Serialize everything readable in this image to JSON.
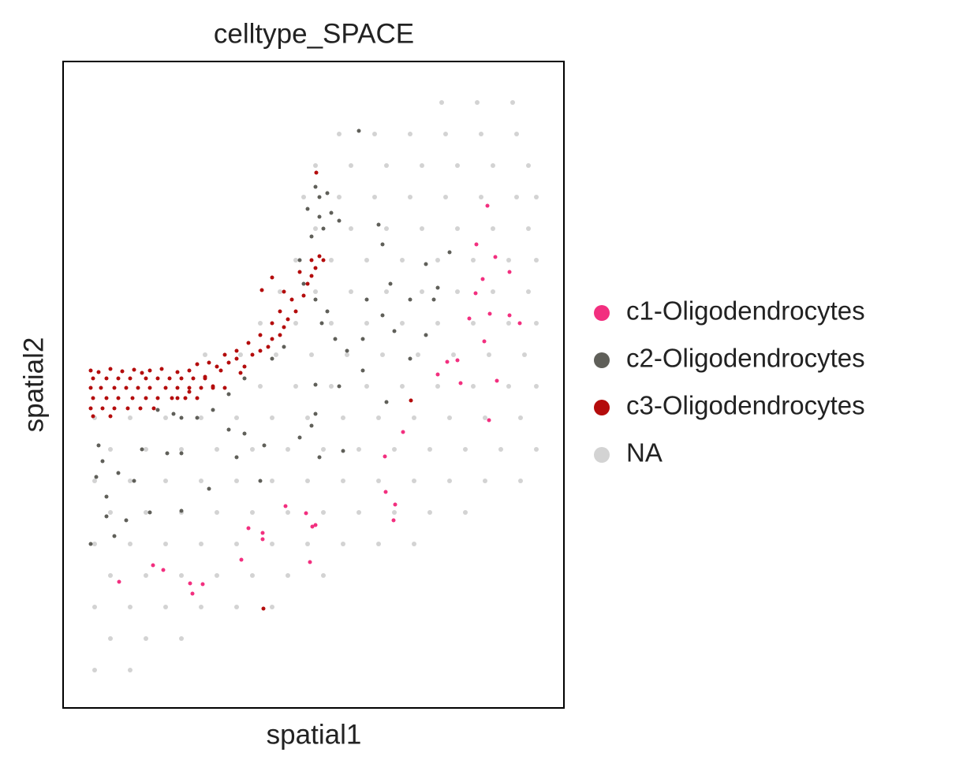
{
  "chart_data": {
    "type": "scatter",
    "title": "celltype_SPACE",
    "xlabel": "spatial1",
    "ylabel": "spatial2",
    "xlim": [
      80,
      715
    ],
    "ylim": [
      898,
      78
    ],
    "xticks": [],
    "yticks": [],
    "grid": false,
    "legend": "right",
    "series": [
      {
        "name": "c1-Oligodendrocytes",
        "color": "#f22f7f",
        "x": [
          618,
          604,
          628,
          646,
          612,
          603,
          621,
          595,
          646,
          659,
          614,
          580,
          567,
          555,
          584,
          630,
          620,
          511,
          488,
          489,
          501,
          362,
          499,
          388,
          400,
          396,
          315,
          333,
          333,
          306,
          393,
          194,
          207,
          151,
          241,
          257,
          244
        ],
        "values": [
          261,
          310,
          326,
          345,
          354,
          372,
          398,
          404,
          400,
          410,
          433,
          457,
          459,
          475,
          486,
          483,
          533,
          548,
          579,
          624,
          640,
          642,
          660,
          651,
          666,
          668,
          670,
          676,
          684,
          710,
          713,
          717,
          723,
          738,
          740,
          741,
          753
        ]
      },
      {
        "name": "c2-Oligodendrocytes",
        "color": "#5f5f59",
        "x": [
          455,
          400,
          405,
          415,
          390,
          405,
          420,
          430,
          395,
          410,
          380,
          385,
          400,
          415,
          408,
          425,
          440,
          460,
          485,
          500,
          520,
          550,
          570,
          540,
          480,
          485,
          495,
          460,
          430,
          400,
          360,
          345,
          310,
          290,
          270,
          250,
          230,
          220,
          200,
          310,
          290,
          335,
          380,
          405,
          435,
          300,
          230,
          212,
          180,
          125,
          130,
          122,
          150,
          135,
          170,
          190,
          160,
          135,
          115,
          145,
          230,
          265,
          330,
          400,
          490,
          520,
          540,
          555,
          465,
          395
        ],
        "values": [
          166,
          237,
          250,
          245,
          265,
          275,
          270,
          280,
          300,
          290,
          330,
          360,
          380,
          395,
          410,
          430,
          445,
          430,
          400,
          420,
          380,
          380,
          320,
          335,
          285,
          310,
          360,
          470,
          490,
          488,
          440,
          455,
          480,
          500,
          520,
          530,
          530,
          525,
          520,
          550,
          545,
          565,
          555,
          580,
          572,
          580,
          575,
          575,
          570,
          565,
          585,
          605,
          600,
          630,
          610,
          650,
          660,
          655,
          690,
          680,
          648,
          620,
          610,
          525,
          510,
          455,
          425,
          365,
          380,
          540
        ]
      },
      {
        "name": "c3-Oligodendrocytes",
        "color": "#b40c0c",
        "x": [
          401,
          345,
          332,
          521,
          334,
          115,
          125,
          140,
          155,
          170,
          180,
          190,
          205,
          118,
          135,
          150,
          165,
          185,
          200,
          215,
          230,
          245,
          260,
          115,
          128,
          145,
          160,
          175,
          190,
          210,
          225,
          240,
          255,
          270,
          285,
          118,
          135,
          150,
          168,
          185,
          200,
          218,
          235,
          250,
          115,
          130,
          145,
          162,
          178,
          195,
          118,
          140,
          275,
          290,
          300,
          310,
          320,
          330,
          340,
          345,
          355,
          360,
          365,
          375,
          370,
          385,
          390,
          395,
          400,
          405,
          410,
          395,
          380,
          360,
          355,
          345,
          330,
          315,
          300,
          285,
          265,
          250,
          240,
          225,
          260,
          280,
          305,
          270,
          225,
          240
        ],
        "values": [
          219,
          352,
          368,
          508,
          772,
          470,
          472,
          468,
          471,
          469,
          473,
          470,
          468,
          480,
          480,
          480,
          480,
          480,
          480,
          480,
          480,
          480,
          480,
          492,
          492,
          492,
          492,
          492,
          492,
          492,
          492,
          492,
          492,
          492,
          492,
          505,
          505,
          505,
          505,
          505,
          505,
          505,
          505,
          505,
          518,
          518,
          518,
          518,
          518,
          518,
          528,
          528,
          465,
          460,
          455,
          465,
          450,
          445,
          440,
          430,
          425,
          415,
          405,
          395,
          380,
          375,
          360,
          350,
          340,
          325,
          330,
          330,
          345,
          370,
          395,
          410,
          425,
          435,
          445,
          450,
          460,
          462,
          470,
          472,
          478,
          470,
          473,
          490,
          505,
          497
        ]
      },
      {
        "name": "NA",
        "color": "#d3d3d3",
        "x": [
          560,
          605,
          650,
          430,
          475,
          520,
          565,
          610,
          655,
          400,
          445,
          490,
          535,
          580,
          625,
          670,
          385,
          430,
          475,
          520,
          565,
          610,
          655,
          680,
          400,
          445,
          490,
          535,
          580,
          625,
          670,
          375,
          420,
          465,
          510,
          555,
          600,
          645,
          680,
          355,
          400,
          445,
          490,
          535,
          580,
          625,
          670,
          330,
          375,
          420,
          465,
          510,
          555,
          600,
          645,
          680,
          260,
          305,
          350,
          395,
          440,
          485,
          530,
          575,
          620,
          665,
          330,
          375,
          420,
          465,
          510,
          555,
          600,
          645,
          680,
          120,
          165,
          210,
          255,
          300,
          345,
          390,
          435,
          480,
          525,
          570,
          615,
          660,
          140,
          185,
          230,
          275,
          320,
          365,
          410,
          455,
          500,
          545,
          590,
          635,
          680,
          120,
          165,
          210,
          255,
          300,
          345,
          390,
          435,
          480,
          525,
          570,
          615,
          660,
          140,
          185,
          230,
          275,
          320,
          365,
          410,
          455,
          500,
          545,
          590,
          120,
          165,
          210,
          255,
          300,
          345,
          390,
          435,
          480,
          525,
          140,
          185,
          230,
          275,
          320,
          365,
          410,
          120,
          165,
          210,
          255,
          300,
          345,
          140,
          185,
          230,
          120,
          165
        ],
        "values": [
          130,
          130,
          130,
          170,
          170,
          170,
          170,
          170,
          170,
          210,
          210,
          210,
          210,
          210,
          210,
          210,
          250,
          250,
          250,
          250,
          250,
          250,
          250,
          250,
          290,
          290,
          290,
          290,
          290,
          290,
          290,
          330,
          330,
          330,
          330,
          330,
          330,
          330,
          330,
          370,
          370,
          370,
          370,
          370,
          370,
          370,
          370,
          410,
          410,
          410,
          410,
          410,
          410,
          410,
          410,
          410,
          450,
          450,
          450,
          450,
          450,
          450,
          450,
          450,
          450,
          450,
          490,
          490,
          490,
          490,
          490,
          490,
          490,
          490,
          490,
          530,
          530,
          530,
          530,
          530,
          530,
          530,
          530,
          530,
          530,
          530,
          530,
          530,
          570,
          570,
          570,
          570,
          570,
          570,
          570,
          570,
          570,
          570,
          570,
          570,
          570,
          610,
          610,
          610,
          610,
          610,
          610,
          610,
          610,
          610,
          610,
          610,
          610,
          610,
          650,
          650,
          650,
          650,
          650,
          650,
          650,
          650,
          650,
          650,
          650,
          690,
          690,
          690,
          690,
          690,
          690,
          690,
          690,
          690,
          690,
          730,
          730,
          730,
          730,
          730,
          730,
          730,
          770,
          770,
          770,
          770,
          770,
          770,
          810,
          810,
          810,
          850,
          850
        ]
      }
    ]
  }
}
